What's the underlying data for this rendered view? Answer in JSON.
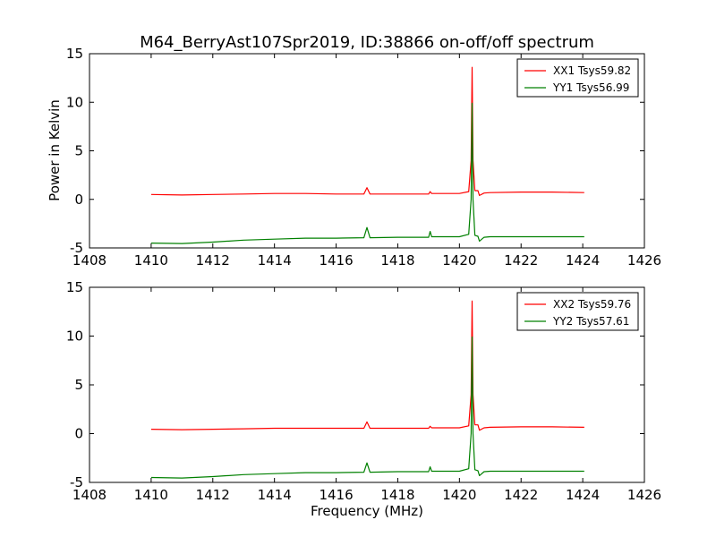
{
  "chart_data": {
    "title": "M64_BerryAst107Spr2019, ID:38866 on-off/off spectrum",
    "xlabel": "Frequency (MHz)",
    "ylabel": "Power in Kelvin",
    "xlim": [
      1408,
      1426
    ],
    "ylim": [
      -5,
      15
    ],
    "xticks": [
      1408,
      1410,
      1412,
      1414,
      1416,
      1418,
      1420,
      1422,
      1424,
      1426
    ],
    "yticks": [
      -5,
      0,
      5,
      10,
      15
    ],
    "panels": [
      {
        "type": "line",
        "legend_position": "top-right",
        "series": [
          {
            "name": "XX1 Tsys59.82",
            "color": "#ff0000",
            "x": [
              1410,
              1411,
              1412,
              1413,
              1414,
              1415,
              1416,
              1416.9,
              1417.0,
              1417.1,
              1418,
              1419.0,
              1419.05,
              1419.1,
              1420,
              1420.3,
              1420.38,
              1420.41,
              1420.44,
              1420.5,
              1420.6,
              1420.65,
              1420.8,
              1421,
              1422,
              1423,
              1424.05
            ],
            "y": [
              0.5,
              0.45,
              0.5,
              0.55,
              0.6,
              0.6,
              0.55,
              0.55,
              1.2,
              0.55,
              0.55,
              0.55,
              0.8,
              0.6,
              0.6,
              0.8,
              4.0,
              13.6,
              4.0,
              0.9,
              0.9,
              0.4,
              0.65,
              0.7,
              0.75,
              0.75,
              0.7
            ]
          },
          {
            "name": "YY1 Tsys56.99",
            "color": "#008000",
            "x": [
              1410,
              1411,
              1412,
              1413,
              1414,
              1415,
              1416,
              1416.9,
              1417.0,
              1417.1,
              1418,
              1419.0,
              1419.05,
              1419.1,
              1420,
              1420.3,
              1420.38,
              1420.41,
              1420.44,
              1420.5,
              1420.6,
              1420.65,
              1420.8,
              1421,
              1422,
              1423,
              1424.05
            ],
            "y": [
              -4.5,
              -4.55,
              -4.4,
              -4.2,
              -4.1,
              -4.0,
              -4.0,
              -3.95,
              -2.9,
              -3.95,
              -3.9,
              -3.9,
              -3.3,
              -3.85,
              -3.85,
              -3.6,
              0.0,
              9.9,
              0.0,
              -3.7,
              -3.8,
              -4.3,
              -3.9,
              -3.85,
              -3.85,
              -3.85,
              -3.85
            ]
          }
        ]
      },
      {
        "type": "line",
        "legend_position": "top-right",
        "series": [
          {
            "name": "XX2 Tsys59.76",
            "color": "#ff0000",
            "x": [
              1410,
              1411,
              1412,
              1413,
              1414,
              1415,
              1416,
              1416.9,
              1417.0,
              1417.1,
              1418,
              1419.0,
              1419.05,
              1419.1,
              1420,
              1420.3,
              1420.38,
              1420.41,
              1420.44,
              1420.5,
              1420.6,
              1420.65,
              1420.8,
              1421,
              1422,
              1423,
              1424.05
            ],
            "y": [
              0.45,
              0.4,
              0.45,
              0.5,
              0.55,
              0.55,
              0.55,
              0.55,
              1.2,
              0.55,
              0.55,
              0.55,
              0.75,
              0.6,
              0.6,
              0.8,
              4.0,
              13.6,
              4.0,
              0.9,
              0.9,
              0.35,
              0.6,
              0.65,
              0.7,
              0.7,
              0.65
            ]
          },
          {
            "name": "YY2 Tsys57.61",
            "color": "#008000",
            "x": [
              1410,
              1411,
              1412,
              1413,
              1414,
              1415,
              1416,
              1416.9,
              1417.0,
              1417.1,
              1418,
              1419.0,
              1419.05,
              1419.1,
              1420,
              1420.3,
              1420.38,
              1420.41,
              1420.44,
              1420.5,
              1420.6,
              1420.65,
              1420.8,
              1421,
              1422,
              1423,
              1424.05
            ],
            "y": [
              -4.5,
              -4.55,
              -4.4,
              -4.2,
              -4.1,
              -4.0,
              -4.0,
              -3.95,
              -3.0,
              -3.95,
              -3.9,
              -3.9,
              -3.4,
              -3.85,
              -3.85,
              -3.6,
              0.0,
              9.9,
              0.0,
              -3.7,
              -3.8,
              -4.3,
              -3.9,
              -3.85,
              -3.85,
              -3.85,
              -3.85
            ]
          }
        ]
      }
    ]
  }
}
